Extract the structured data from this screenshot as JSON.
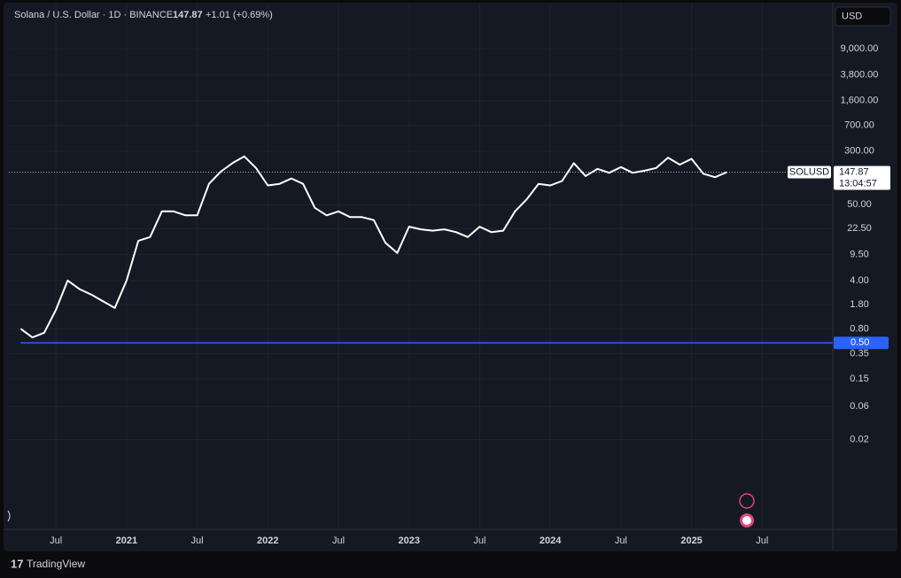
{
  "header": {
    "symbol": "Solana / U.S. Dollar · 1D · BINANCE",
    "price": "147.87",
    "change": "+1.01 (+0.69%)",
    "currency": "USD"
  },
  "brand": "TradingView",
  "chart_data": {
    "type": "line",
    "log_scale": true,
    "grid": true,
    "color": "#ffffff",
    "x": [
      "2020-04",
      "2020-05",
      "2020-06",
      "2020-07",
      "2020-08",
      "2020-09",
      "2020-10",
      "2020-11",
      "2020-12",
      "2021-01",
      "2021-02",
      "2021-03",
      "2021-04",
      "2021-05",
      "2021-06",
      "2021-07",
      "2021-08",
      "2021-09",
      "2021-10",
      "2021-11",
      "2021-12",
      "2022-01",
      "2022-02",
      "2022-03",
      "2022-04",
      "2022-05",
      "2022-06",
      "2022-07",
      "2022-08",
      "2022-09",
      "2022-10",
      "2022-11",
      "2022-12",
      "2023-01",
      "2023-02",
      "2023-03",
      "2023-04",
      "2023-05",
      "2023-06",
      "2023-07",
      "2023-08",
      "2023-09",
      "2023-10",
      "2023-11",
      "2023-12",
      "2024-01",
      "2024-02",
      "2024-03",
      "2024-04",
      "2024-05",
      "2024-06",
      "2024-07",
      "2024-08",
      "2024-09",
      "2024-10",
      "2024-11",
      "2024-12",
      "2025-01",
      "2025-02",
      "2025-03",
      "2025-04"
    ],
    "values": [
      0.8,
      0.6,
      0.7,
      1.5,
      4,
      3,
      2.5,
      2,
      1.6,
      4,
      15,
      17,
      40,
      40,
      35,
      35,
      100,
      150,
      200,
      250,
      170,
      95,
      100,
      120,
      100,
      45,
      35,
      40,
      33,
      33,
      30,
      14,
      10,
      24,
      22,
      21,
      22,
      20,
      17,
      24,
      20,
      21,
      40,
      60,
      100,
      95,
      110,
      200,
      130,
      165,
      145,
      175,
      145,
      155,
      170,
      240,
      190,
      230,
      140,
      125,
      147.87
    ],
    "xlim": [
      "2020-03",
      "2026-01"
    ],
    "xticks": [
      {
        "value": "2020-07",
        "label": "Jul"
      },
      {
        "value": "2021-01",
        "label": "2021"
      },
      {
        "value": "2021-07",
        "label": "Jul"
      },
      {
        "value": "2022-01",
        "label": "2022"
      },
      {
        "value": "2022-07",
        "label": "Jul"
      },
      {
        "value": "2023-01",
        "label": "2023"
      },
      {
        "value": "2023-07",
        "label": "Jul"
      },
      {
        "value": "2024-01",
        "label": "2024"
      },
      {
        "value": "2024-07",
        "label": "Jul"
      },
      {
        "value": "2025-01",
        "label": "2025"
      },
      {
        "value": "2025-07",
        "label": "Jul"
      }
    ],
    "ylim": [
      0.001,
      42000
    ],
    "yticks": [
      {
        "value": 9000,
        "label": "9,000.00"
      },
      {
        "value": 3800,
        "label": "3,800.00"
      },
      {
        "value": 1600,
        "label": "1,600.00"
      },
      {
        "value": 700,
        "label": "700.00"
      },
      {
        "value": 300,
        "label": "300.00"
      },
      {
        "value": 50,
        "label": "50.00"
      },
      {
        "value": 22.5,
        "label": "22.50"
      },
      {
        "value": 9.5,
        "label": "9.50"
      },
      {
        "value": 4,
        "label": "4.00"
      },
      {
        "value": 1.8,
        "label": "1.80"
      },
      {
        "value": 0.8,
        "label": "0.80"
      },
      0.35,
      0.15,
      0.06,
      0.02
    ],
    "hline": {
      "value": 0.5,
      "label": "0.50",
      "color": "#2962ff"
    },
    "last": {
      "symbol": "SOLUSD",
      "value": 147.87,
      "label": "147.87",
      "countdown": "13:04:57"
    }
  }
}
